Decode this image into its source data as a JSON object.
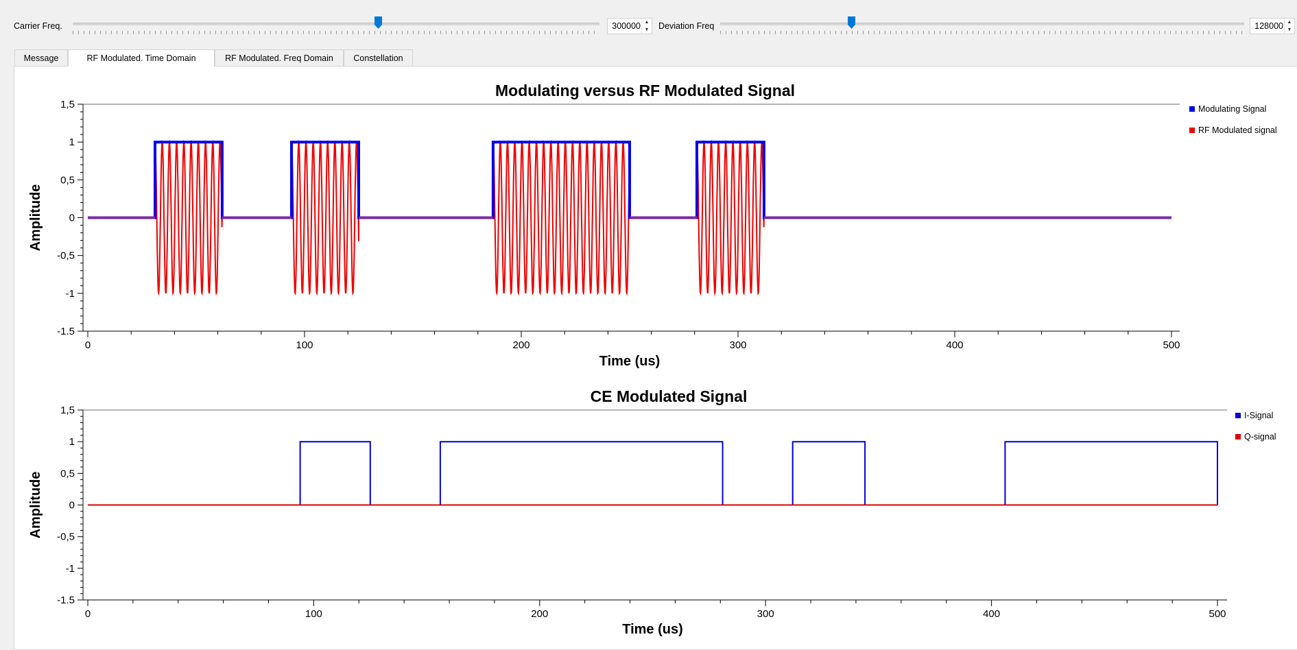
{
  "controls": {
    "carrier": {
      "label": "Carrier Freq.",
      "value": "300000",
      "slider_fraction": 0.58
    },
    "deviation": {
      "label": "Deviation Freq",
      "value": "128000",
      "slider_fraction": 0.25
    }
  },
  "tabs": [
    {
      "label": "Message",
      "active": false
    },
    {
      "label": "RF Modulated. Time Domain",
      "active": true
    },
    {
      "label": "RF Modulated. Freq Domain",
      "active": false
    },
    {
      "label": "Constellation",
      "active": false
    }
  ],
  "colors": {
    "modulating": "#0000ee",
    "rf": "#ee0000",
    "i_signal": "#0000dd",
    "q_signal": "#dd0000"
  },
  "chart_data": [
    {
      "type": "line",
      "title": "Modulating versus RF Modulated Signal",
      "xlabel": "Time (us)",
      "ylabel": "Amplitude",
      "xlim": [
        0,
        500
      ],
      "ylim": [
        -1.5,
        1.5
      ],
      "x_ticks": [
        "0",
        "100",
        "200",
        "300",
        "400",
        "500"
      ],
      "y_ticks": [
        "1,5",
        "1",
        "0,5",
        "0",
        "-0,5",
        "-1",
        "-1.5"
      ],
      "legend_position": "right",
      "series": [
        {
          "name": "Modulating Signal",
          "pulses": [
            [
              31,
              62
            ],
            [
              94,
              125
            ],
            [
              187,
              250
            ],
            [
              281,
              312
            ]
          ],
          "low": 0,
          "high": 1
        },
        {
          "name": "RF Modulated signal",
          "pulses": [
            [
              31,
              62
            ],
            [
              94,
              125
            ],
            [
              187,
              250
            ],
            [
              281,
              312
            ]
          ],
          "carrier_cycles_per_us": 0.3,
          "amplitude": 1
        }
      ]
    },
    {
      "type": "line",
      "title": "CE Modulated Signal",
      "xlabel": "Time (us)",
      "ylabel": "Amplitude",
      "xlim": [
        0,
        500
      ],
      "ylim": [
        -1.5,
        1.5
      ],
      "x_ticks": [
        "0",
        "100",
        "200",
        "300",
        "400",
        "500"
      ],
      "y_ticks": [
        "1,5",
        "1",
        "0,5",
        "0",
        "-0,5",
        "-1",
        "-1.5"
      ],
      "legend_position": "right",
      "series": [
        {
          "name": "I-Signal",
          "pulses": [
            [
              94,
              125
            ],
            [
              156,
              281
            ],
            [
              312,
              344
            ],
            [
              406,
              500
            ]
          ],
          "low": 0,
          "high": 1
        },
        {
          "name": "Q-signal",
          "pulses": [],
          "low": 0,
          "high": 0
        }
      ]
    }
  ]
}
